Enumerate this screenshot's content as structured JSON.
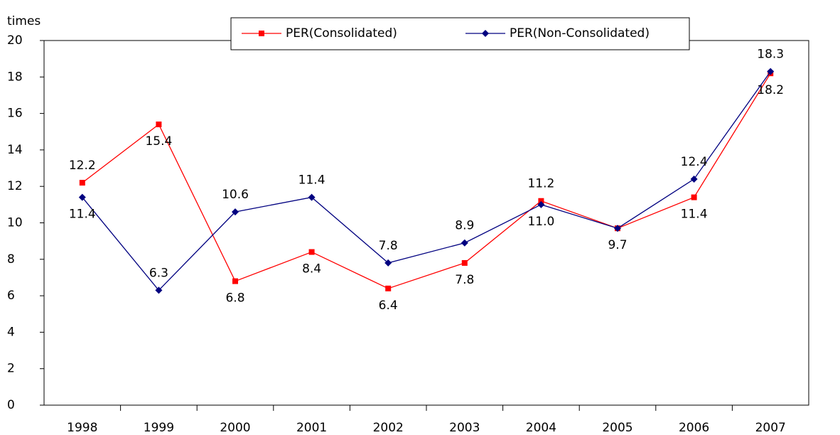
{
  "chart_data": {
    "type": "line",
    "y_label": "times",
    "categories": [
      "1998",
      "1999",
      "2000",
      "2001",
      "2002",
      "2003",
      "2004",
      "2005",
      "2006",
      "2007"
    ],
    "series": [
      {
        "name": "PER(Consolidated)",
        "color": "#ff0000",
        "marker": "square",
        "values": [
          12.2,
          15.4,
          6.8,
          8.4,
          6.4,
          7.8,
          11.2,
          9.7,
          11.4,
          18.2
        ],
        "value_labels": [
          "12.2",
          "15.4",
          "6.8",
          "8.4",
          "6.4",
          "7.8",
          "11.2",
          "9.7",
          "11.4",
          "18.2"
        ]
      },
      {
        "name": "PER(Non-Consolidated)",
        "color": "#000080",
        "marker": "diamond",
        "values": [
          11.4,
          6.3,
          10.6,
          11.4,
          7.8,
          8.9,
          11.0,
          9.7,
          12.4,
          18.3
        ],
        "value_labels": [
          "11.4",
          "6.3",
          "10.6",
          "11.4",
          "7.8",
          "8.9",
          "11.0",
          null,
          "12.4",
          "18.3"
        ]
      }
    ],
    "ylim": [
      0,
      20
    ],
    "yticks": [
      0,
      2,
      4,
      6,
      8,
      10,
      12,
      14,
      16,
      18,
      20
    ],
    "grid": false,
    "legend": "top"
  }
}
